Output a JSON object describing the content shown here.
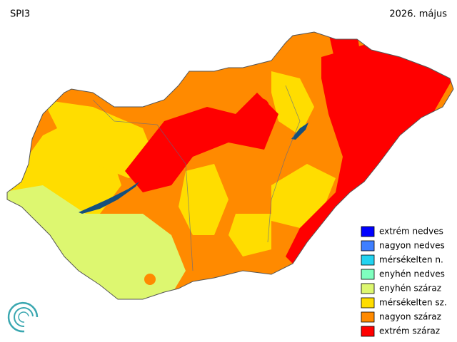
{
  "header": {
    "title": "SPI3",
    "date": "2026. május"
  },
  "legend": [
    {
      "label": "extrém nedves",
      "color": "#0000ff"
    },
    {
      "label": "nagyon nedves",
      "color": "#3f7fff"
    },
    {
      "label": "mérsékelten n.",
      "color": "#22d3f0"
    },
    {
      "label": "enyhén nedves",
      "color": "#7fffbf"
    },
    {
      "label": "enyhén száraz",
      "color": "#ddf770"
    },
    {
      "label": "mérsékelten sz.",
      "color": "#ffdd00"
    },
    {
      "label": "nagyon száraz",
      "color": "#ff8a00"
    },
    {
      "label": "extrém száraz",
      "color": "#ff0000"
    }
  ]
}
